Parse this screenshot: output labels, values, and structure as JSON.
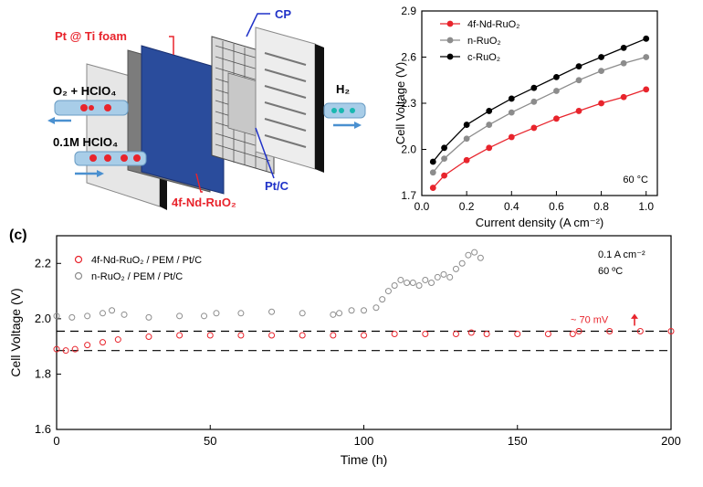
{
  "diagram": {
    "labels": {
      "pt_ti": "Pt @ Ti foam",
      "cp": "CP",
      "o2_hclo4": "O₂ + HClO₄",
      "hclo4": "0.1M HClO₄",
      "h2": "H₂",
      "ptc": "Pt/C",
      "anode": "4f-Nd-RuO₂"
    },
    "colors": {
      "label_red": "#e8242c",
      "label_blue": "#2032c8",
      "membrane": "#2a4c9c"
    }
  },
  "chart_data": [
    {
      "type": "line",
      "x": [
        0.05,
        0.1,
        0.2,
        0.3,
        0.4,
        0.5,
        0.6,
        0.7,
        0.8,
        0.9,
        1.0
      ],
      "series": [
        {
          "name": "4f-Nd-RuO₂",
          "color": "#e8242c",
          "values": [
            1.75,
            1.83,
            1.93,
            2.01,
            2.08,
            2.14,
            2.2,
            2.25,
            2.3,
            2.34,
            2.39
          ]
        },
        {
          "name": "n-RuO₂",
          "color": "#8c8c8c",
          "values": [
            1.85,
            1.94,
            2.07,
            2.16,
            2.24,
            2.31,
            2.38,
            2.45,
            2.51,
            2.56,
            2.6
          ]
        },
        {
          "name": "c-RuO₂",
          "color": "#000000",
          "values": [
            1.92,
            2.01,
            2.16,
            2.25,
            2.33,
            2.4,
            2.47,
            2.54,
            2.6,
            2.66,
            2.72
          ]
        }
      ],
      "xlabel": "Current density (A cm⁻²)",
      "ylabel": "Cell Voltage (V)",
      "xlim": [
        0,
        1.05
      ],
      "ylim": [
        1.7,
        2.9
      ],
      "xticks": [
        "0.0",
        "0.2",
        "0.4",
        "0.6",
        "0.8",
        "1.0"
      ],
      "yticks": [
        "1.7",
        "2.0",
        "2.3",
        "2.6",
        "2.9"
      ],
      "annotation": "60 °C",
      "legend": "top-left",
      "grid": false
    },
    {
      "type": "scatter",
      "panel_label": "(c)",
      "series": [
        {
          "name": "4f-Nd-RuO₂ / PEM / Pt/C",
          "color": "#e8242c",
          "points": [
            [
              0,
              1.89
            ],
            [
              3,
              1.885
            ],
            [
              6,
              1.89
            ],
            [
              10,
              1.905
            ],
            [
              15,
              1.915
            ],
            [
              20,
              1.925
            ],
            [
              30,
              1.935
            ],
            [
              40,
              1.94
            ],
            [
              50,
              1.94
            ],
            [
              60,
              1.94
            ],
            [
              70,
              1.94
            ],
            [
              80,
              1.94
            ],
            [
              90,
              1.94
            ],
            [
              100,
              1.94
            ],
            [
              110,
              1.945
            ],
            [
              120,
              1.945
            ],
            [
              130,
              1.945
            ],
            [
              135,
              1.95
            ],
            [
              140,
              1.945
            ],
            [
              150,
              1.945
            ],
            [
              160,
              1.945
            ],
            [
              168,
              1.945
            ],
            [
              170,
              1.955
            ],
            [
              180,
              1.955
            ],
            [
              190,
              1.955
            ],
            [
              200,
              1.955
            ]
          ]
        },
        {
          "name": "n-RuO₂ / PEM / Pt/C",
          "color": "#8c8c8c",
          "points": [
            [
              0,
              2.01
            ],
            [
              5,
              2.005
            ],
            [
              10,
              2.01
            ],
            [
              15,
              2.02
            ],
            [
              18,
              2.03
            ],
            [
              22,
              2.015
            ],
            [
              30,
              2.005
            ],
            [
              40,
              2.01
            ],
            [
              48,
              2.01
            ],
            [
              52,
              2.02
            ],
            [
              60,
              2.02
            ],
            [
              70,
              2.025
            ],
            [
              80,
              2.02
            ],
            [
              90,
              2.015
            ],
            [
              92,
              2.02
            ],
            [
              96,
              2.03
            ],
            [
              100,
              2.03
            ],
            [
              104,
              2.04
            ],
            [
              106,
              2.07
            ],
            [
              108,
              2.1
            ],
            [
              110,
              2.12
            ],
            [
              112,
              2.14
            ],
            [
              114,
              2.13
            ],
            [
              116,
              2.13
            ],
            [
              118,
              2.12
            ],
            [
              120,
              2.14
            ],
            [
              122,
              2.13
            ],
            [
              124,
              2.15
            ],
            [
              126,
              2.16
            ],
            [
              128,
              2.15
            ],
            [
              130,
              2.18
            ],
            [
              132,
              2.2
            ],
            [
              134,
              2.23
            ],
            [
              136,
              2.24
            ],
            [
              138,
              2.22
            ]
          ]
        }
      ],
      "xlabel": "Time (h)",
      "ylabel": "Cell Voltage (V)",
      "xlim": [
        0,
        200
      ],
      "ylim": [
        1.6,
        2.3
      ],
      "xticks": [
        "0",
        "50",
        "100",
        "150",
        "200"
      ],
      "yticks": [
        "1.6",
        "1.8",
        "2.0",
        "2.2"
      ],
      "reference_lines": [
        1.955,
        1.885
      ],
      "annotations": {
        "current": "0.1 A cm⁻²",
        "temperature": "60 ºC",
        "delta": "~ 70 mV"
      },
      "legend": "top-left",
      "grid": false
    }
  ]
}
